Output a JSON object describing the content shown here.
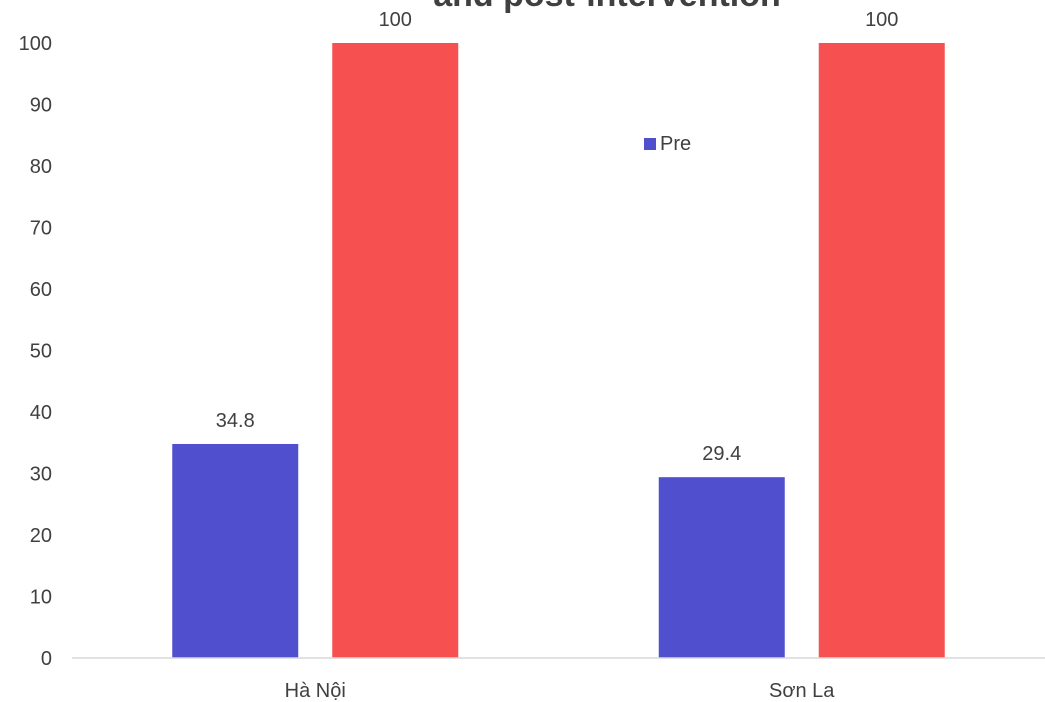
{
  "chart_data": {
    "type": "bar",
    "title": "and post-intervention",
    "categories": [
      "Hà Nội",
      "Sơn La"
    ],
    "series": [
      {
        "name": "Pre",
        "values": [
          34.8,
          29.4
        ],
        "color": "#5050CE"
      },
      {
        "values": [
          100,
          100
        ],
        "color": "#F65050"
      }
    ],
    "ylim": [
      0,
      100
    ],
    "yticks": [
      0,
      10,
      20,
      30,
      40,
      50,
      60,
      70,
      80,
      90,
      100
    ],
    "data_labels": true,
    "grid": false,
    "legend": {
      "position": "top-center",
      "entries": [
        "Pre"
      ]
    }
  }
}
